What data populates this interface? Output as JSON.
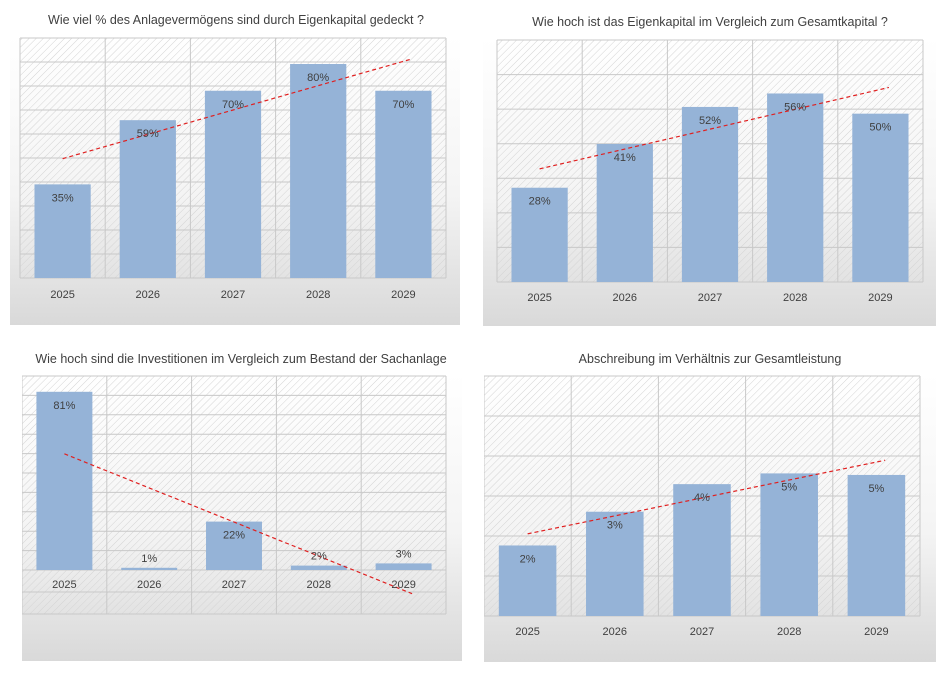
{
  "charts": [
    {
      "title": "Wie viel % des Anlagevermögens sind durch Eigenkapital gedeckt ?",
      "chart_data": {
        "type": "bar",
        "title": "Wie viel % des Anlagevermögens sind durch Eigenkapital gedeckt ?",
        "categories": [
          "2025",
          "2026",
          "2027",
          "2028",
          "2029"
        ],
        "values": [
          35,
          59,
          70,
          80,
          70
        ],
        "labels": [
          "35%",
          "59%",
          "70%",
          "80%",
          "70%"
        ],
        "unit": "%",
        "ylim": [
          0,
          80
        ],
        "trendline": "linear",
        "grid": true,
        "colors": {
          "bar": "#95b3d7",
          "trend": "#e02020",
          "grid": "#c8c8c8"
        }
      }
    },
    {
      "title": "Wie hoch ist das Eigenkapital im Vergleich zum Gesamtkapital ?",
      "chart_data": {
        "type": "bar",
        "title": "Wie hoch ist das Eigenkapital im Vergleich zum Gesamtkapital ?",
        "categories": [
          "2025",
          "2026",
          "2027",
          "2028",
          "2029"
        ],
        "values": [
          28,
          41,
          52,
          56,
          50
        ],
        "labels": [
          "28%",
          "41%",
          "52%",
          "56%",
          "50%"
        ],
        "unit": "%",
        "ylim": [
          0,
          60
        ],
        "trendline": "linear",
        "grid": true,
        "colors": {
          "bar": "#95b3d7",
          "trend": "#e02020",
          "grid": "#c8c8c8"
        }
      }
    },
    {
      "title": "Wie hoch sind die Investitionen im Vergleich zum Bestand der Sachanlage",
      "chart_data": {
        "type": "bar",
        "title": "Wie hoch sind die Investitionen im Vergleich zum Bestand der Sachanlage",
        "categories": [
          "2025",
          "2026",
          "2027",
          "2028",
          "2029"
        ],
        "values": [
          81,
          1,
          22,
          2,
          3
        ],
        "labels": [
          "81%",
          "1%",
          "22%",
          "2%",
          "3%"
        ],
        "unit": "%",
        "ylim": [
          -20,
          80
        ],
        "trendline": "linear",
        "grid": true,
        "colors": {
          "bar": "#95b3d7",
          "trend": "#e02020",
          "grid": "#c8c8c8"
        }
      }
    },
    {
      "title": "Abschreibung im Verhältnis zur Gesamtleistung",
      "chart_data": {
        "type": "bar",
        "title": "Abschreibung im Verhältnis zur Gesamtleistung",
        "categories": [
          "2025",
          "2026",
          "2027",
          "2028",
          "2029"
        ],
        "values": [
          2.3,
          3.4,
          4.3,
          4.65,
          4.6
        ],
        "labels": [
          "2%",
          "3%",
          "4%",
          "5%",
          "5%"
        ],
        "unit": "%",
        "ylim": [
          0,
          6
        ],
        "trendline": "linear",
        "grid": true,
        "colors": {
          "bar": "#95b3d7",
          "trend": "#e02020",
          "grid": "#c8c8c8"
        }
      }
    }
  ]
}
